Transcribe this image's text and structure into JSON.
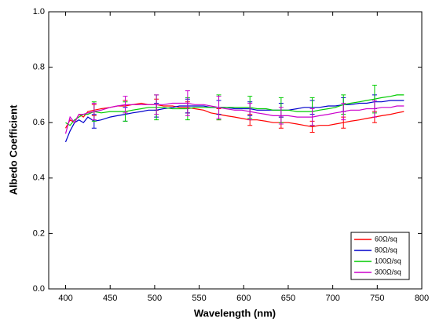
{
  "chart_data": {
    "type": "line",
    "xlabel": "Wavelength (nm)",
    "ylabel": "Albedo Coefficient",
    "x": [
      400,
      405,
      410,
      415,
      420,
      425,
      432,
      440,
      450,
      458,
      467,
      475,
      485,
      493,
      502,
      510,
      520,
      528,
      537,
      545,
      555,
      563,
      572,
      580,
      590,
      598,
      607,
      615,
      625,
      633,
      642,
      650,
      660,
      668,
      677,
      685,
      695,
      703,
      712,
      720,
      730,
      738,
      747,
      755,
      765,
      772,
      780
    ],
    "series": [
      {
        "name": "60Ω/sq",
        "color": "#ff0000",
        "values": [
          0.58,
          0.61,
          0.6,
          0.63,
          0.62,
          0.64,
          0.645,
          0.65,
          0.655,
          0.66,
          0.66,
          0.665,
          0.67,
          0.665,
          0.665,
          0.66,
          0.66,
          0.655,
          0.655,
          0.65,
          0.645,
          0.635,
          0.63,
          0.625,
          0.62,
          0.615,
          0.61,
          0.61,
          0.605,
          0.6,
          0.6,
          0.6,
          0.595,
          0.59,
          0.585,
          0.59,
          0.59,
          0.595,
          0.6,
          0.605,
          0.61,
          0.615,
          0.62,
          0.625,
          0.63,
          0.635,
          0.64
        ],
        "errors": [
          null,
          null,
          null,
          null,
          null,
          null,
          0.02,
          null,
          null,
          null,
          0.02,
          null,
          null,
          null,
          0.02,
          null,
          null,
          null,
          0.02,
          null,
          null,
          null,
          0.02,
          null,
          null,
          null,
          0.02,
          null,
          null,
          null,
          0.02,
          null,
          null,
          null,
          0.02,
          null,
          null,
          null,
          0.02,
          null,
          null,
          null,
          0.02,
          null,
          null,
          null,
          null
        ]
      },
      {
        "name": "80Ω/sq",
        "color": "#0000cc",
        "values": [
          0.53,
          0.57,
          0.6,
          0.61,
          0.6,
          0.62,
          0.605,
          0.61,
          0.62,
          0.625,
          0.63,
          0.635,
          0.64,
          0.645,
          0.645,
          0.65,
          0.655,
          0.66,
          0.66,
          0.66,
          0.66,
          0.655,
          0.655,
          0.655,
          0.65,
          0.65,
          0.65,
          0.645,
          0.645,
          0.645,
          0.645,
          0.645,
          0.65,
          0.655,
          0.655,
          0.655,
          0.66,
          0.66,
          0.665,
          0.665,
          0.67,
          0.67,
          0.675,
          0.675,
          0.68,
          0.68,
          0.68
        ],
        "errors": [
          null,
          null,
          null,
          null,
          null,
          null,
          0.025,
          null,
          null,
          null,
          0.025,
          null,
          null,
          null,
          0.025,
          null,
          null,
          null,
          0.025,
          null,
          null,
          null,
          0.025,
          null,
          null,
          null,
          0.025,
          null,
          null,
          null,
          0.025,
          null,
          null,
          null,
          0.025,
          null,
          null,
          null,
          0.025,
          null,
          null,
          null,
          0.025,
          null,
          null,
          null,
          null
        ]
      },
      {
        "name": "100Ω/sq",
        "color": "#00cc00",
        "values": [
          0.6,
          0.59,
          0.61,
          0.62,
          0.63,
          0.63,
          0.64,
          0.635,
          0.64,
          0.64,
          0.64,
          0.645,
          0.65,
          0.655,
          0.655,
          0.655,
          0.65,
          0.65,
          0.65,
          0.655,
          0.655,
          0.655,
          0.655,
          0.655,
          0.655,
          0.655,
          0.655,
          0.65,
          0.65,
          0.645,
          0.645,
          0.645,
          0.64,
          0.64,
          0.64,
          0.645,
          0.65,
          0.655,
          0.665,
          0.67,
          0.675,
          0.68,
          0.685,
          0.69,
          0.695,
          0.7,
          0.7
        ],
        "errors": [
          null,
          null,
          null,
          null,
          null,
          null,
          0.035,
          null,
          null,
          null,
          0.035,
          null,
          null,
          null,
          0.045,
          null,
          null,
          null,
          0.04,
          null,
          null,
          null,
          0.045,
          null,
          null,
          null,
          0.04,
          null,
          null,
          null,
          0.045,
          null,
          null,
          null,
          0.05,
          null,
          null,
          null,
          0.035,
          null,
          null,
          null,
          0.05,
          null,
          null,
          null,
          null
        ]
      },
      {
        "name": "300Ω/sq",
        "color": "#cc00cc",
        "values": [
          0.56,
          0.62,
          0.6,
          0.63,
          0.63,
          0.635,
          0.64,
          0.645,
          0.655,
          0.66,
          0.665,
          0.665,
          0.665,
          0.665,
          0.665,
          0.665,
          0.67,
          0.67,
          0.67,
          0.665,
          0.665,
          0.66,
          0.655,
          0.65,
          0.645,
          0.645,
          0.64,
          0.635,
          0.63,
          0.625,
          0.625,
          0.625,
          0.62,
          0.62,
          0.62,
          0.625,
          0.63,
          0.635,
          0.64,
          0.645,
          0.645,
          0.65,
          0.65,
          0.655,
          0.655,
          0.66,
          0.66
        ],
        "errors": [
          null,
          null,
          null,
          null,
          null,
          null,
          0.03,
          null,
          null,
          null,
          0.03,
          null,
          null,
          null,
          0.035,
          null,
          null,
          null,
          0.045,
          null,
          null,
          null,
          0.04,
          null,
          null,
          null,
          0.03,
          null,
          null,
          null,
          0.03,
          null,
          null,
          null,
          0.03,
          null,
          null,
          null,
          0.03,
          null,
          null,
          null,
          0.03,
          null,
          null,
          null,
          null
        ]
      }
    ],
    "xlim": [
      381,
      800
    ],
    "xticks": [
      400,
      450,
      500,
      550,
      600,
      650,
      700,
      750,
      800
    ],
    "ylim": [
      0,
      1
    ],
    "yticks": [
      {
        "value": 0,
        "label": "0.0"
      },
      0.2,
      0.4,
      0.6,
      0.8,
      {
        "value": 1,
        "label": "1.0"
      }
    ],
    "legend": "lower right"
  }
}
